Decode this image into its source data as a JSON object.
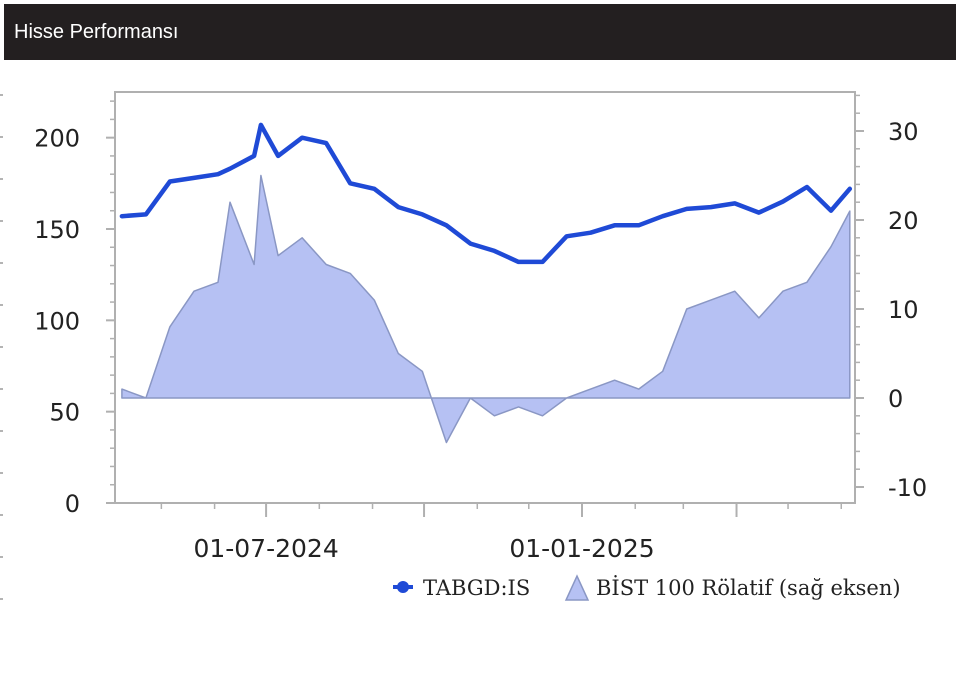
{
  "header": {
    "title": "Hisse Performansı"
  },
  "colors": {
    "header_bg": "#231f20",
    "price_line": "#1f4ad6",
    "relative_fill": "#b6c1f3",
    "relative_stroke": "#8a97c4",
    "axis": "#b0b0b0"
  },
  "chart_data": {
    "type": "line",
    "title": "",
    "x_tick_labels": [
      "01-07-2024",
      "01-01-2025"
    ],
    "y_left": {
      "ticks": [
        "0",
        "50",
        "100",
        "150",
        "200"
      ],
      "range": [
        0,
        225
      ]
    },
    "y_right": {
      "ticks": [
        "-10",
        "0",
        "10",
        "20",
        "30"
      ],
      "range": [
        -12,
        34
      ]
    },
    "legend_position": "bottom-right",
    "series": [
      {
        "name": "TABGD:IS",
        "type": "line",
        "axis": "left",
        "x": [
          "2024-04-08",
          "2024-04-22",
          "2024-05-06",
          "2024-05-20",
          "2024-06-03",
          "2024-06-10",
          "2024-06-24",
          "2024-06-28",
          "2024-07-08",
          "2024-07-22",
          "2024-08-05",
          "2024-08-19",
          "2024-09-02",
          "2024-09-16",
          "2024-09-30",
          "2024-10-14",
          "2024-10-28",
          "2024-11-11",
          "2024-11-25",
          "2024-12-09",
          "2024-12-23",
          "2025-01-06",
          "2025-01-20",
          "2025-02-03",
          "2025-02-17",
          "2025-03-03",
          "2025-03-17",
          "2025-03-31",
          "2025-04-14",
          "2025-04-28",
          "2025-05-12",
          "2025-05-26",
          "2025-06-06"
        ],
        "values": [
          157,
          158,
          176,
          178,
          180,
          183,
          190,
          207,
          190,
          200,
          197,
          175,
          172,
          162,
          158,
          152,
          142,
          138,
          132,
          132,
          146,
          148,
          152,
          152,
          157,
          161,
          162,
          164,
          159,
          165,
          173,
          160,
          172
        ]
      },
      {
        "name": "BİST 100 Rölatif (sağ eksen)",
        "type": "area",
        "axis": "right",
        "x": [
          "2024-04-08",
          "2024-04-22",
          "2024-05-06",
          "2024-05-20",
          "2024-06-03",
          "2024-06-10",
          "2024-06-24",
          "2024-06-28",
          "2024-07-08",
          "2024-07-22",
          "2024-08-05",
          "2024-08-19",
          "2024-09-02",
          "2024-09-16",
          "2024-09-30",
          "2024-10-14",
          "2024-10-28",
          "2024-11-11",
          "2024-11-25",
          "2024-12-09",
          "2024-12-23",
          "2025-01-06",
          "2025-01-20",
          "2025-02-03",
          "2025-02-17",
          "2025-03-03",
          "2025-03-17",
          "2025-03-31",
          "2025-04-14",
          "2025-04-28",
          "2025-05-12",
          "2025-05-26",
          "2025-06-06"
        ],
        "values": [
          1,
          0,
          8,
          12,
          13,
          22,
          15,
          25,
          16,
          18,
          15,
          14,
          11,
          5,
          3,
          -5,
          0,
          -2,
          -1,
          -2,
          0,
          1,
          2,
          1,
          3,
          10,
          11,
          12,
          9,
          12,
          13,
          17,
          21
        ]
      }
    ]
  },
  "legend": {
    "price_label": "TABGD:IS",
    "relative_label": "BİST 100 Rölatif (sağ eksen)"
  }
}
